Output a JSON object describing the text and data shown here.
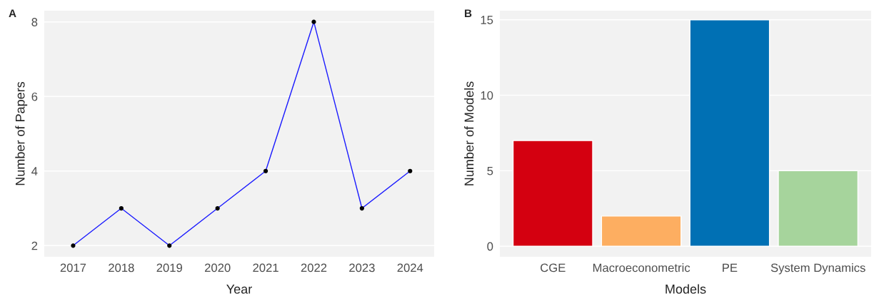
{
  "chart_data": [
    {
      "type": "line",
      "title": "A",
      "xlabel": "Year",
      "ylabel": "Number of Papers",
      "x": [
        2017,
        2018,
        2019,
        2020,
        2021,
        2022,
        2023,
        2024
      ],
      "series": [
        {
          "color": "#1a1aff",
          "values": [
            2,
            3,
            2,
            3,
            4,
            8,
            3,
            4
          ]
        }
      ],
      "xlim": [
        2016.4,
        2024.5
      ],
      "xticks": [
        2017,
        2018,
        2019,
        2020,
        2021,
        2022,
        2023,
        2024
      ],
      "ylim": [
        1.7,
        8.3
      ],
      "yticks": [
        2,
        4,
        6,
        8
      ],
      "grid": "y",
      "marker": "circle",
      "line_style": "solid"
    },
    {
      "type": "bar",
      "title": "B",
      "xlabel": "Models",
      "ylabel": "Number of Models",
      "categories": [
        "CGE",
        "Macroeconometric",
        "PE",
        "System Dynamics"
      ],
      "values": [
        7,
        2,
        15,
        5
      ],
      "colors": [
        "#d40010",
        "#fdae61",
        "#0070b4",
        "#a6d49c"
      ],
      "ylim": [
        -0.7,
        15.6
      ],
      "yticks": [
        0,
        5,
        10,
        15
      ],
      "grid": "y"
    }
  ]
}
